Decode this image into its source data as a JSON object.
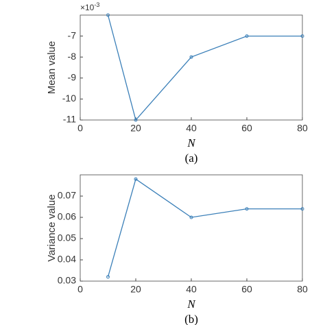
{
  "chart_data": [
    {
      "type": "line",
      "ylabel": "Mean value",
      "xlabel": "N",
      "caption": "(a)",
      "exponent_base": "×10",
      "exponent_power": "-3",
      "x": [
        10,
        20,
        40,
        60,
        80
      ],
      "series": [
        {
          "color": "#3a7fb8",
          "values": [
            -6,
            -11,
            -8,
            -7,
            -7
          ]
        }
      ],
      "xlim": [
        0,
        80
      ],
      "xticks": [
        0,
        20,
        40,
        60,
        80
      ],
      "ylim": [
        -11,
        -6
      ],
      "yticks": [
        -11,
        -10,
        -9,
        -8,
        -7
      ]
    },
    {
      "type": "line",
      "ylabel": "Variance value",
      "xlabel": "N",
      "caption": "(b)",
      "x": [
        10,
        20,
        40,
        60,
        80
      ],
      "series": [
        {
          "color": "#3a7fb8",
          "values": [
            0.032,
            0.078,
            0.06,
            0.064,
            0.064
          ]
        }
      ],
      "xlim": [
        0,
        80
      ],
      "xticks": [
        0,
        20,
        40,
        60,
        80
      ],
      "ylim": [
        0.03,
        0.08
      ],
      "yticks": [
        0.03,
        0.04,
        0.05,
        0.06,
        0.07
      ]
    }
  ]
}
